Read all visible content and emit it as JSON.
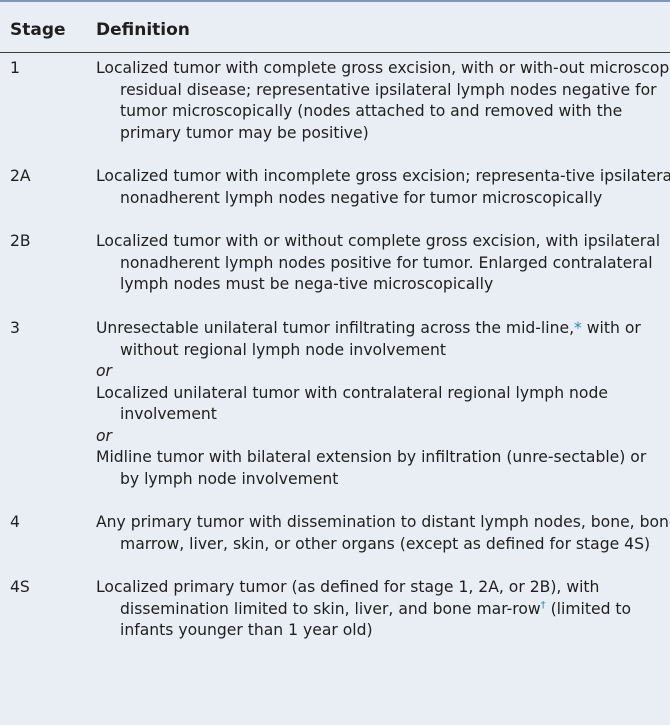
{
  "table": {
    "headers": {
      "stage": "Stage",
      "definition": "Definition"
    },
    "rows": [
      {
        "stage": "1",
        "definition": "Localized tumor with complete gross excision, with or with-out microscopic residual disease; representative ipsilateral lymph nodes negative for tumor microscopically (nodes attached to and removed with the primary tumor may be positive)"
      },
      {
        "stage": "2A",
        "definition": "Localized tumor with incomplete gross excision; representa-tive ipsilateral nonadherent lymph nodes negative for tumor microscopically"
      },
      {
        "stage": "2B",
        "definition": "Localized tumor with or without complete gross excision, with ipsilateral nonadherent lymph nodes positive for tumor. Enlarged contralateral lymph nodes must be nega-tive microscopically"
      },
      {
        "stage": "3",
        "definition_a_pre": "Unresectable unilateral tumor infiltrating across the mid-line,",
        "definition_a_mark": "*",
        "definition_a_post": " with or without regional lymph node involvement",
        "or_1": "or",
        "definition_b": "Localized unilateral tumor with contralateral regional lymph node involvement",
        "or_2": "or",
        "definition_c": "Midline tumor with bilateral extension by infiltration (unre-sectable) or by lymph node involvement"
      },
      {
        "stage": "4",
        "definition": "Any primary tumor with dissemination to distant lymph nodes, bone, bone marrow, liver, skin, or other organs (except as defined for stage 4S)"
      },
      {
        "stage": "4S",
        "definition_pre": "Localized primary tumor (as defined for stage 1, 2A, or 2B), with dissemination limited to skin, liver, and bone mar-row",
        "definition_mark": "†",
        "definition_post": " (limited to infants younger than 1 year old)"
      }
    ]
  },
  "colors": {
    "background": "#e9eef5",
    "top_rule": "#7a97c2",
    "footnote_mark": "#1d8fb0",
    "text": "#1f1f1f"
  }
}
